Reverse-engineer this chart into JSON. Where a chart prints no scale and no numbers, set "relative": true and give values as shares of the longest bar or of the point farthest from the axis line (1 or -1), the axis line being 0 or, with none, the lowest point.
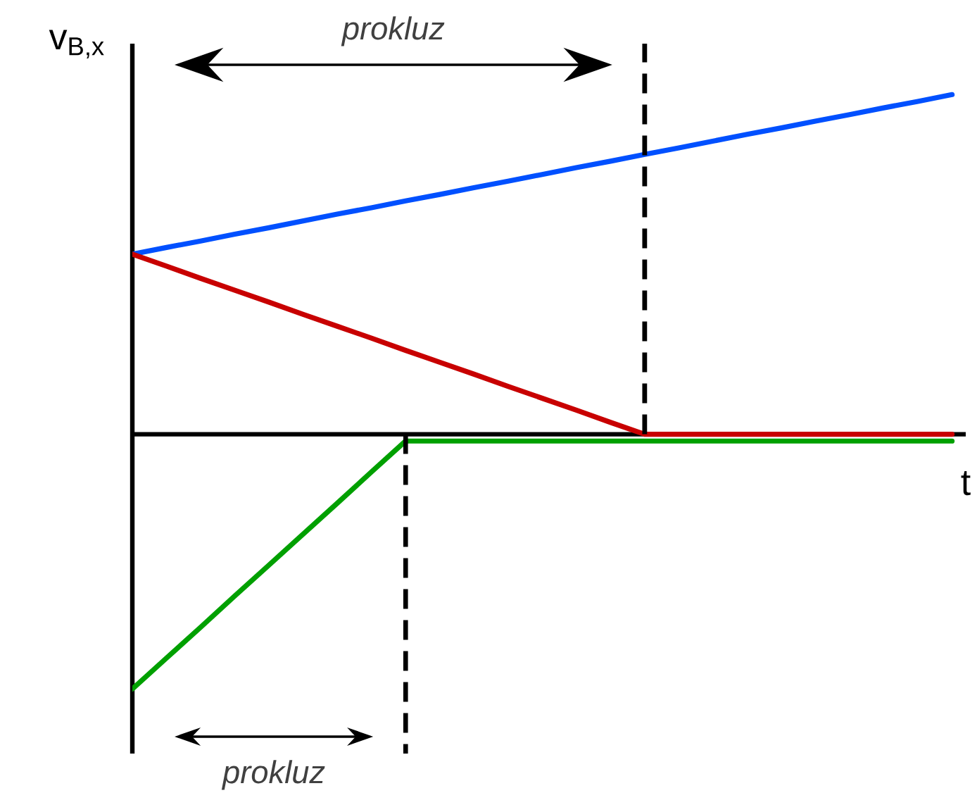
{
  "chart_data": {
    "type": "line",
    "relative": true,
    "ylabel": "v$_{B,x}$",
    "xlabel": "t",
    "categories": [
      null,
      null,
      null,
      null,
      null,
      null,
      null,
      null,
      null,
      null,
      null,
      null,
      null,
      null,
      null,
      null,
      null,
      null,
      null,
      null,
      null,
      null,
      null,
      null,
      null
    ],
    "series": [
      {
        "color": "#0050ff",
        "values": [
          0.53,
          0.55,
          0.569,
          0.589,
          0.608,
          0.628,
          0.648,
          0.667,
          0.687,
          0.706,
          0.726,
          0.745,
          0.765,
          0.785,
          0.804,
          0.824,
          0.843,
          0.863,
          0.883,
          0.902,
          0.922,
          0.941,
          0.961,
          0.98,
          1
        ]
      },
      {
        "color": "#c80000",
        "values": [
          0.53,
          0.495,
          0.459,
          0.424,
          0.389,
          0.353,
          0.318,
          0.283,
          0.247,
          0.212,
          0.177,
          0.141,
          0.106,
          0.071,
          0.035,
          0,
          0,
          0,
          0,
          0,
          0,
          0,
          0,
          0,
          0
        ]
      },
      {
        "color": "#00a000",
        "values": [
          -0.75,
          -0.659,
          -0.568,
          -0.476,
          -0.385,
          -0.294,
          -0.203,
          -0.111,
          -0.02,
          -0.02,
          -0.02,
          -0.02,
          -0.02,
          -0.02,
          -0.02,
          -0.02,
          -0.02,
          -0.02,
          -0.02,
          -0.02,
          -0.02,
          -0.02,
          -0.02,
          -0.02,
          -0.02
        ]
      }
    ],
    "annotations": [
      "prokluz",
      "prokluz"
    ],
    "marker": "none"
  }
}
